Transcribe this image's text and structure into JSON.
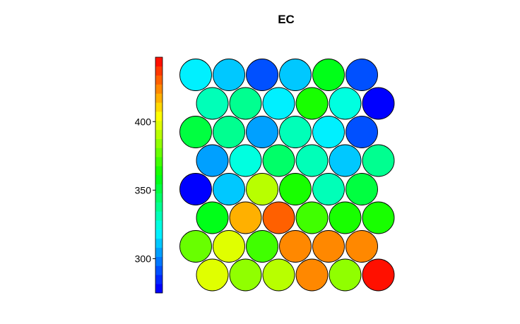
{
  "chart_data": {
    "type": "heatmap",
    "title": "EC",
    "layout": "hexagonal",
    "grid": {
      "rows": 8,
      "cols": 6
    },
    "value_range": [
      275,
      447
    ],
    "colorbar": {
      "ticks": [
        300,
        350,
        400
      ],
      "colors": [
        "#0000ff",
        "#0028ff",
        "#0050ff",
        "#0078ff",
        "#00a0ff",
        "#00c8ff",
        "#00f0ff",
        "#00ffe0",
        "#00ffb8",
        "#00ff90",
        "#00ff68",
        "#00ff40",
        "#00ff18",
        "#18ff00",
        "#40ff00",
        "#68ff00",
        "#90ff00",
        "#b8ff00",
        "#e0ff00",
        "#ffff00",
        "#ffd800",
        "#ffb000",
        "#ff8800",
        "#ff6000",
        "#ff3800",
        "#ff1000"
      ]
    },
    "cells": [
      [
        318,
        312,
        292,
        312,
        355,
        290
      ],
      [
        330,
        338,
        320,
        362,
        322,
        276
      ],
      [
        348,
        338,
        302,
        328,
        318,
        290
      ],
      [
        303,
        322,
        345,
        328,
        312,
        337
      ],
      [
        277,
        310,
        388,
        363,
        330,
        350
      ],
      [
        356,
        418,
        432,
        370,
        363,
        362
      ],
      [
        380,
        398,
        368,
        424,
        424,
        425
      ],
      [
        398,
        385,
        388,
        424,
        385,
        447
      ]
    ]
  }
}
